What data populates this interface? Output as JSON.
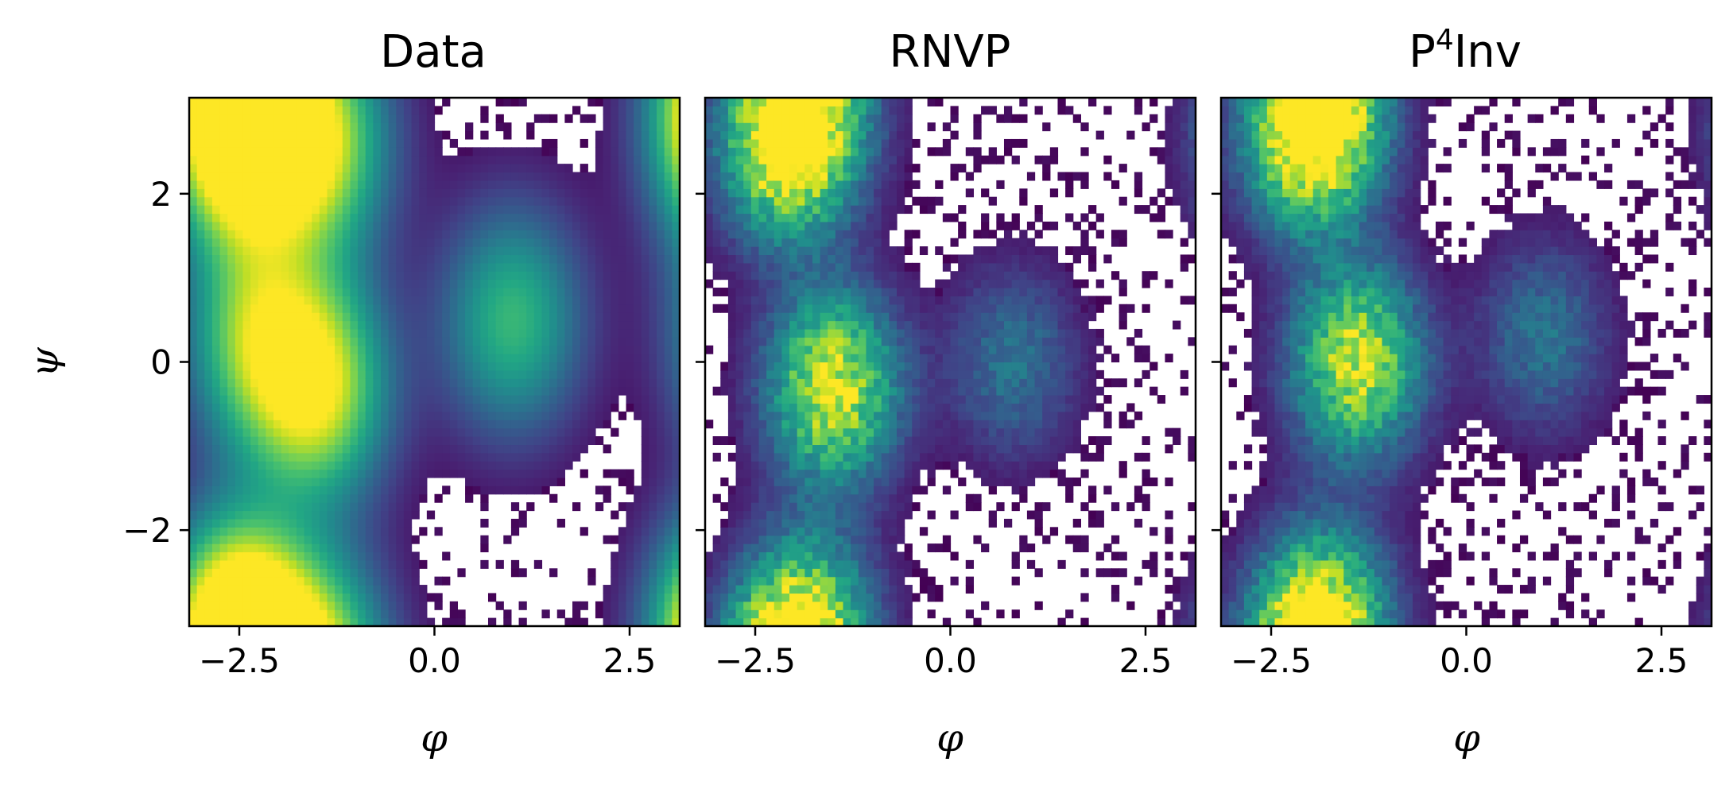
{
  "chart_data": [
    {
      "type": "heatmap",
      "title": "Data",
      "xlabel": "φ",
      "ylabel": "ψ",
      "xlim": [
        -3.14159,
        3.14159
      ],
      "ylim": [
        -3.14159,
        3.14159
      ],
      "xticks": [
        -2.5,
        0.0,
        2.5
      ],
      "xtick_labels": [
        "−2.5",
        "0.0",
        "2.5"
      ],
      "yticks": [
        -2,
        0,
        2
      ],
      "ytick_labels": [
        "−2",
        "0",
        "2"
      ],
      "colormap": "viridis",
      "bins": [
        64,
        64
      ],
      "log_color": true,
      "density_modes": [
        {
          "phi": -2.5,
          "psi": 2.7,
          "weight": 1.0
        },
        {
          "phi": -1.5,
          "psi": 2.6,
          "weight": 0.9
        },
        {
          "phi": -1.5,
          "psi": -0.3,
          "weight": 0.95
        },
        {
          "phi": -2.3,
          "psi": 0.3,
          "weight": 0.7
        },
        {
          "phi": 1.0,
          "psi": 0.5,
          "weight": 0.6
        },
        {
          "phi": -2.5,
          "psi": -3.1,
          "weight": 0.8
        }
      ]
    },
    {
      "type": "heatmap",
      "title": "RNVP",
      "xlabel": "φ",
      "ylabel": "",
      "xlim": [
        -3.14159,
        3.14159
      ],
      "ylim": [
        -3.14159,
        3.14159
      ],
      "xticks": [
        -2.5,
        0.0,
        2.5
      ],
      "xtick_labels": [
        "−2.5",
        "0.0",
        "2.5"
      ],
      "yticks": [
        -2,
        0,
        2
      ],
      "ytick_labels": [],
      "colormap": "viridis",
      "bins": [
        64,
        64
      ],
      "log_color": true,
      "density_modes": [
        {
          "phi": -2.1,
          "psi": 2.6,
          "weight": 1.0
        },
        {
          "phi": -1.5,
          "psi": -0.3,
          "weight": 0.95
        },
        {
          "phi": 0.8,
          "psi": 0.0,
          "weight": 0.3
        },
        {
          "phi": -1.8,
          "psi": -3.1,
          "weight": 0.6
        }
      ]
    },
    {
      "type": "heatmap",
      "title_main": "P",
      "title_sup": "4",
      "title_rest": "Inv",
      "xlabel": "φ",
      "ylabel": "",
      "xlim": [
        -3.14159,
        3.14159
      ],
      "ylim": [
        -3.14159,
        3.14159
      ],
      "xticks": [
        -2.5,
        0.0,
        2.5
      ],
      "xtick_labels": [
        "−2.5",
        "0.0",
        "2.5"
      ],
      "yticks": [
        -2,
        0,
        2
      ],
      "ytick_labels": [],
      "colormap": "viridis",
      "bins": [
        64,
        64
      ],
      "log_color": true,
      "density_modes": [
        {
          "phi": -2.0,
          "psi": 2.7,
          "weight": 1.0
        },
        {
          "phi": -1.4,
          "psi": 0.0,
          "weight": 0.9
        },
        {
          "phi": 1.0,
          "psi": 0.3,
          "weight": 0.3
        },
        {
          "phi": -1.8,
          "psi": -3.0,
          "weight": 0.6
        }
      ]
    }
  ]
}
